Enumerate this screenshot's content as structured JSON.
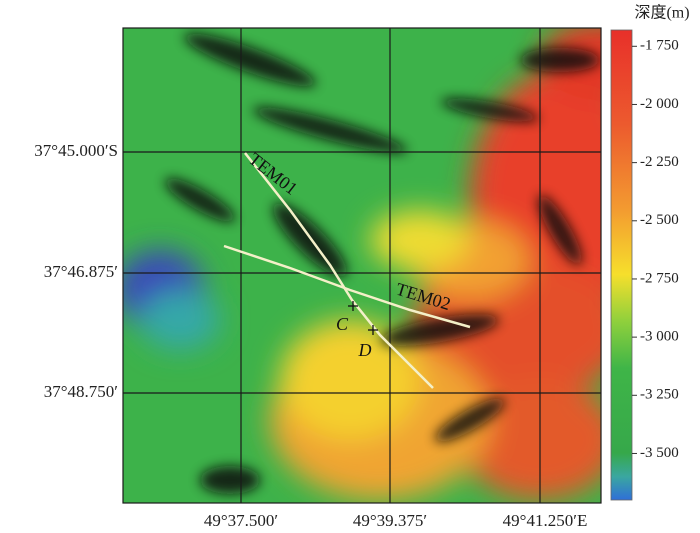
{
  "map": {
    "lat_labels": [
      "37°45.000′S",
      "37°46.875′",
      "37°48.750′"
    ],
    "lon_labels": [
      "49°37.500′",
      "49°39.375′",
      "49°41.250′E"
    ],
    "profiles": [
      "TEM01",
      "TEM02"
    ],
    "points": [
      "C",
      "D"
    ]
  },
  "colorbar": {
    "title": "深度(m)",
    "lim": [
      -3700,
      -1680
    ],
    "ticks": [
      {
        "value": -1750,
        "label": "-1 750"
      },
      {
        "value": -2000,
        "label": "-2 000"
      },
      {
        "value": -2250,
        "label": "-2 250"
      },
      {
        "value": -2500,
        "label": "-2 500"
      },
      {
        "value": -2750,
        "label": "-2 750"
      },
      {
        "value": -3000,
        "label": "-3 000"
      },
      {
        "value": -3250,
        "label": "-3 250"
      },
      {
        "value": -3500,
        "label": "-3 500"
      }
    ]
  }
}
